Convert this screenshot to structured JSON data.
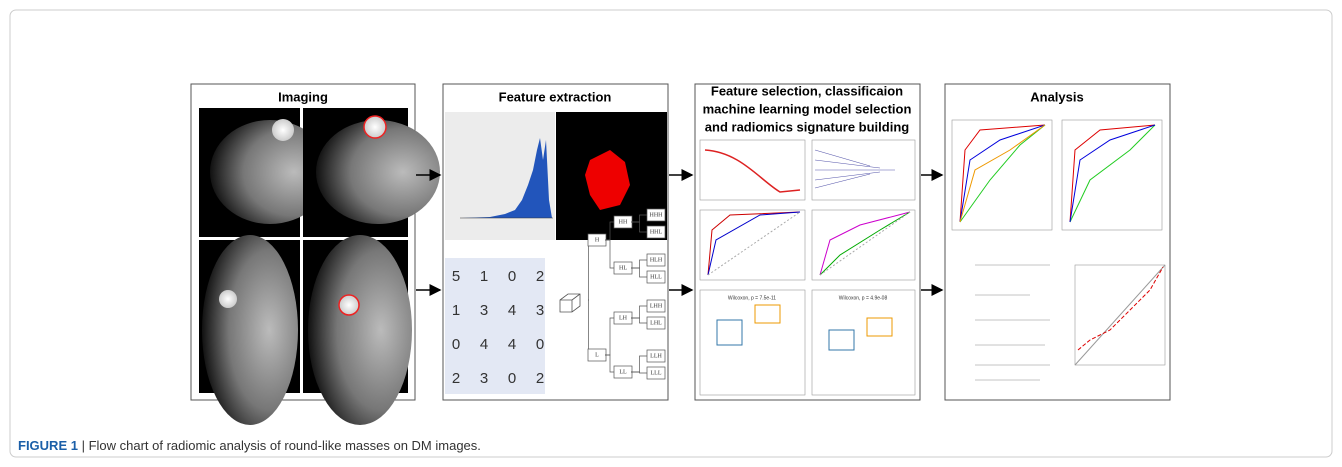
{
  "panels": [
    {
      "title": "Imaging"
    },
    {
      "title": "Feature extraction",
      "matrix": [
        [
          5,
          1,
          0,
          2
        ],
        [
          1,
          3,
          4,
          3
        ],
        [
          0,
          4,
          4,
          0
        ],
        [
          2,
          3,
          0,
          2
        ]
      ],
      "tree": [
        "H",
        "L",
        "HH",
        "HL",
        "LH",
        "LL",
        "HHH",
        "HHL",
        "HLH",
        "HLL",
        "LHH",
        "LHL",
        "LLH",
        "LLL"
      ]
    },
    {
      "title_lines": [
        "Feature selection, classificaion",
        "machine learning model selection",
        "and radiomics signature building"
      ],
      "wilcoxon": [
        "Wilcoxon, p = 7.5e-11",
        "Wilcoxon, p = 4.9e-08"
      ]
    },
    {
      "title": "Analysis"
    }
  ],
  "caption": {
    "label": "FIGURE 1",
    "text": "| Flow chart of radiomic analysis of round-like masses on DM images."
  }
}
